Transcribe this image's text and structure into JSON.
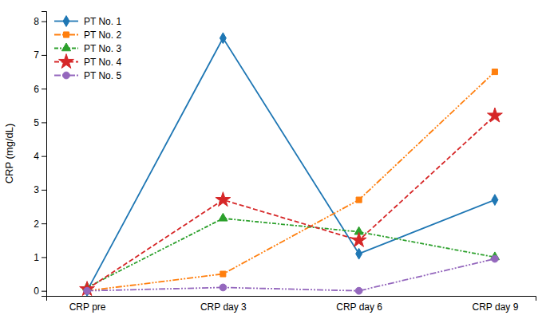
{
  "chart_data": {
    "type": "line",
    "categories": [
      "CRP pre",
      "CRP day 3",
      "CRP day 6",
      "CRP day 9"
    ],
    "ylabel": "CRP (mg/dL)",
    "ylim": [
      -0.15,
      8.3
    ],
    "yticks": [
      0,
      1,
      2,
      3,
      4,
      5,
      6,
      7,
      8
    ],
    "grid": false,
    "legend": "upper left",
    "series": [
      {
        "name": "PT No. 1",
        "values": [
          0.0,
          7.5,
          1.1,
          2.7
        ],
        "marker": "diamond",
        "line_style": "solid"
      },
      {
        "name": "PT No. 2",
        "values": [
          0.0,
          0.5,
          2.7,
          6.5
        ],
        "marker": "square",
        "line_style": "dash-dot-dot"
      },
      {
        "name": "PT No. 3",
        "values": [
          0.1,
          2.15,
          1.75,
          1.0
        ],
        "marker": "triangle",
        "line_style": "dash-dot"
      },
      {
        "name": "PT No. 4",
        "values": [
          0.05,
          2.7,
          1.5,
          5.2
        ],
        "marker": "star",
        "line_style": "dashed"
      },
      {
        "name": "PT No. 5",
        "values": [
          0.0,
          0.1,
          0.0,
          0.95
        ],
        "marker": "circle",
        "line_style": "dash-dot-dot"
      }
    ]
  }
}
